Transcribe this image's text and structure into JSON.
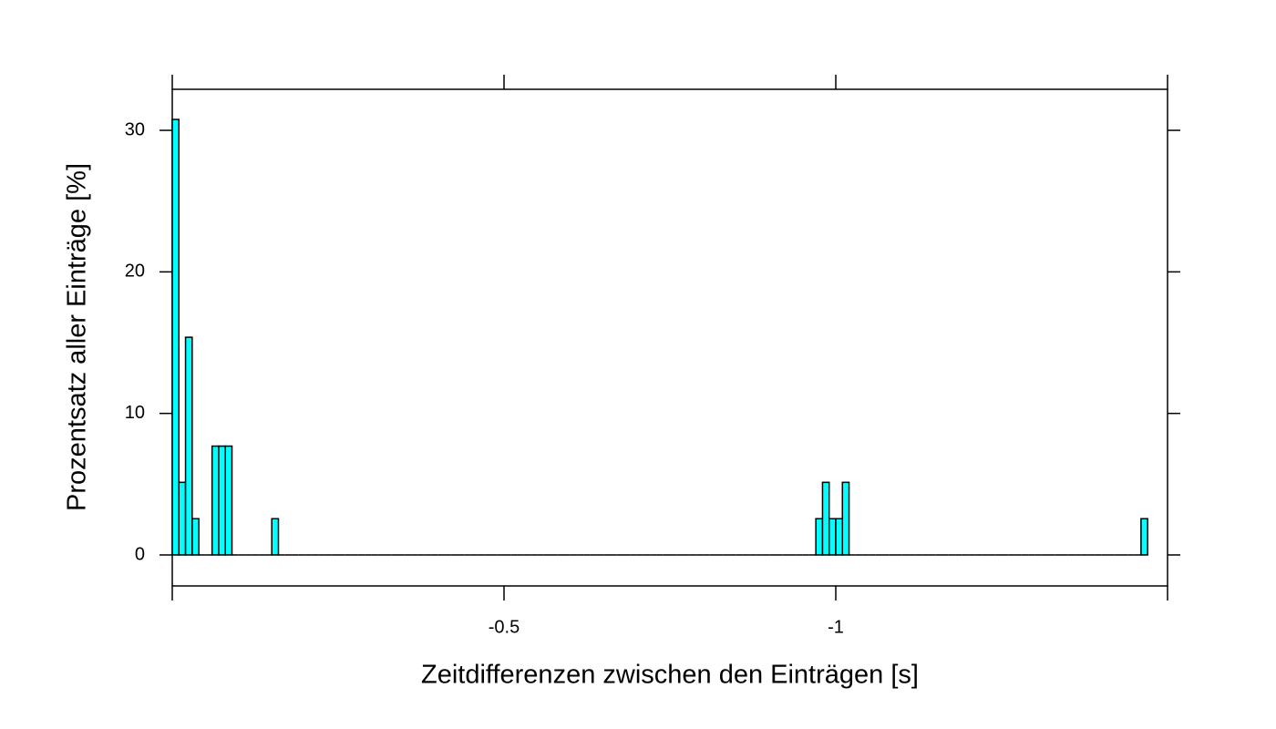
{
  "chart_data": {
    "type": "histogram",
    "xlabel": "Zeitdifferenzen zwischen den Einträgen [s]",
    "ylabel": "Prozentsatz aller Einträge [%]",
    "bins": [
      0,
      -0.01,
      -0.02,
      -0.03,
      -0.04,
      -0.05,
      -0.06,
      -0.07,
      -0.08,
      -0.09,
      -0.1,
      -0.11,
      -0.12,
      -0.13,
      -0.14,
      -0.15,
      -0.16,
      -0.17,
      -0.18,
      -0.19,
      -0.2,
      -0.21,
      -0.22,
      -0.23,
      -0.24,
      -0.25,
      -0.26,
      -0.27,
      -0.28,
      -0.29,
      -0.3,
      -0.31,
      -0.32,
      -0.33,
      -0.34,
      -0.35,
      -0.36,
      -0.37,
      -0.38,
      -0.39,
      -0.4,
      -0.41,
      -0.42,
      -0.43,
      -0.44,
      -0.45,
      -0.46,
      -0.47,
      -0.48,
      -0.49,
      -0.5,
      -0.51,
      -0.52,
      -0.53,
      -0.54,
      -0.55,
      -0.56,
      -0.57,
      -0.58,
      -0.59,
      -0.6,
      -0.61,
      -0.62,
      -0.63,
      -0.64,
      -0.65,
      -0.66,
      -0.67,
      -0.68,
      -0.69,
      -0.7,
      -0.71,
      -0.72,
      -0.73,
      -0.74,
      -0.75,
      -0.76,
      -0.77,
      -0.78,
      -0.79,
      -0.8,
      -0.81,
      -0.82,
      -0.83,
      -0.84,
      -0.85,
      -0.86,
      -0.87,
      -0.88,
      -0.89,
      -0.9,
      -0.91,
      -0.92,
      -0.93,
      -0.94,
      -0.95,
      -0.96,
      -0.97,
      -0.98,
      -0.99,
      -1.0,
      -1.01,
      -1.02,
      -1.03,
      -1.04,
      -1.05,
      -1.06,
      -1.07,
      -1.08,
      -1.09,
      -1.1,
      -1.11,
      -1.12,
      -1.13,
      -1.14,
      -1.15,
      -1.16,
      -1.17,
      -1.18,
      -1.19,
      -1.2,
      -1.21,
      -1.22,
      -1.23,
      -1.24,
      -1.25,
      -1.26,
      -1.27,
      -1.28,
      -1.29,
      -1.3,
      -1.31,
      -1.32,
      -1.33,
      -1.34,
      -1.35,
      -1.36,
      -1.37,
      -1.38,
      -1.39,
      -1.4,
      -1.41,
      -1.42,
      -1.43,
      -1.44,
      -1.45,
      -1.46,
      -1.47
    ],
    "values": [
      30.77,
      5.13,
      15.38,
      2.56,
      0,
      0,
      7.69,
      7.69,
      7.69,
      0,
      0,
      0,
      0,
      0,
      0,
      2.56,
      0,
      0,
      0,
      0,
      0,
      0,
      0,
      0,
      0,
      0,
      0,
      0,
      0,
      0,
      0,
      0,
      0,
      0,
      0,
      0,
      0,
      0,
      0,
      0,
      0,
      0,
      0,
      0,
      0,
      0,
      0,
      0,
      0,
      0,
      0,
      0,
      0,
      0,
      0,
      0,
      0,
      0,
      0,
      0,
      0,
      0,
      0,
      0,
      0,
      0,
      0,
      0,
      0,
      0,
      0,
      0,
      0,
      0,
      0,
      0,
      0,
      0,
      0,
      0,
      0,
      0,
      0,
      0,
      0,
      0,
      0,
      0,
      0,
      0,
      0,
      0,
      0,
      0,
      0,
      0,
      0,
      2.56,
      5.13,
      2.56,
      2.56,
      5.13,
      0,
      0,
      0,
      0,
      0,
      0,
      0,
      0,
      0,
      0,
      0,
      0,
      0,
      0,
      0,
      0,
      0,
      0,
      0,
      0,
      0,
      0,
      0,
      0,
      0,
      0,
      0,
      0,
      0,
      0,
      0,
      0,
      0,
      0,
      0,
      0,
      0,
      0,
      0,
      0,
      0,
      0,
      0,
      0,
      2.56
    ],
    "color": "#00ffff",
    "xlim": [
      0,
      -1.5
    ],
    "xticks": [
      -0.5,
      -1.0
    ],
    "ylim": [
      -2.19,
      32.9
    ],
    "yticks": [
      0,
      10,
      20,
      30
    ]
  }
}
